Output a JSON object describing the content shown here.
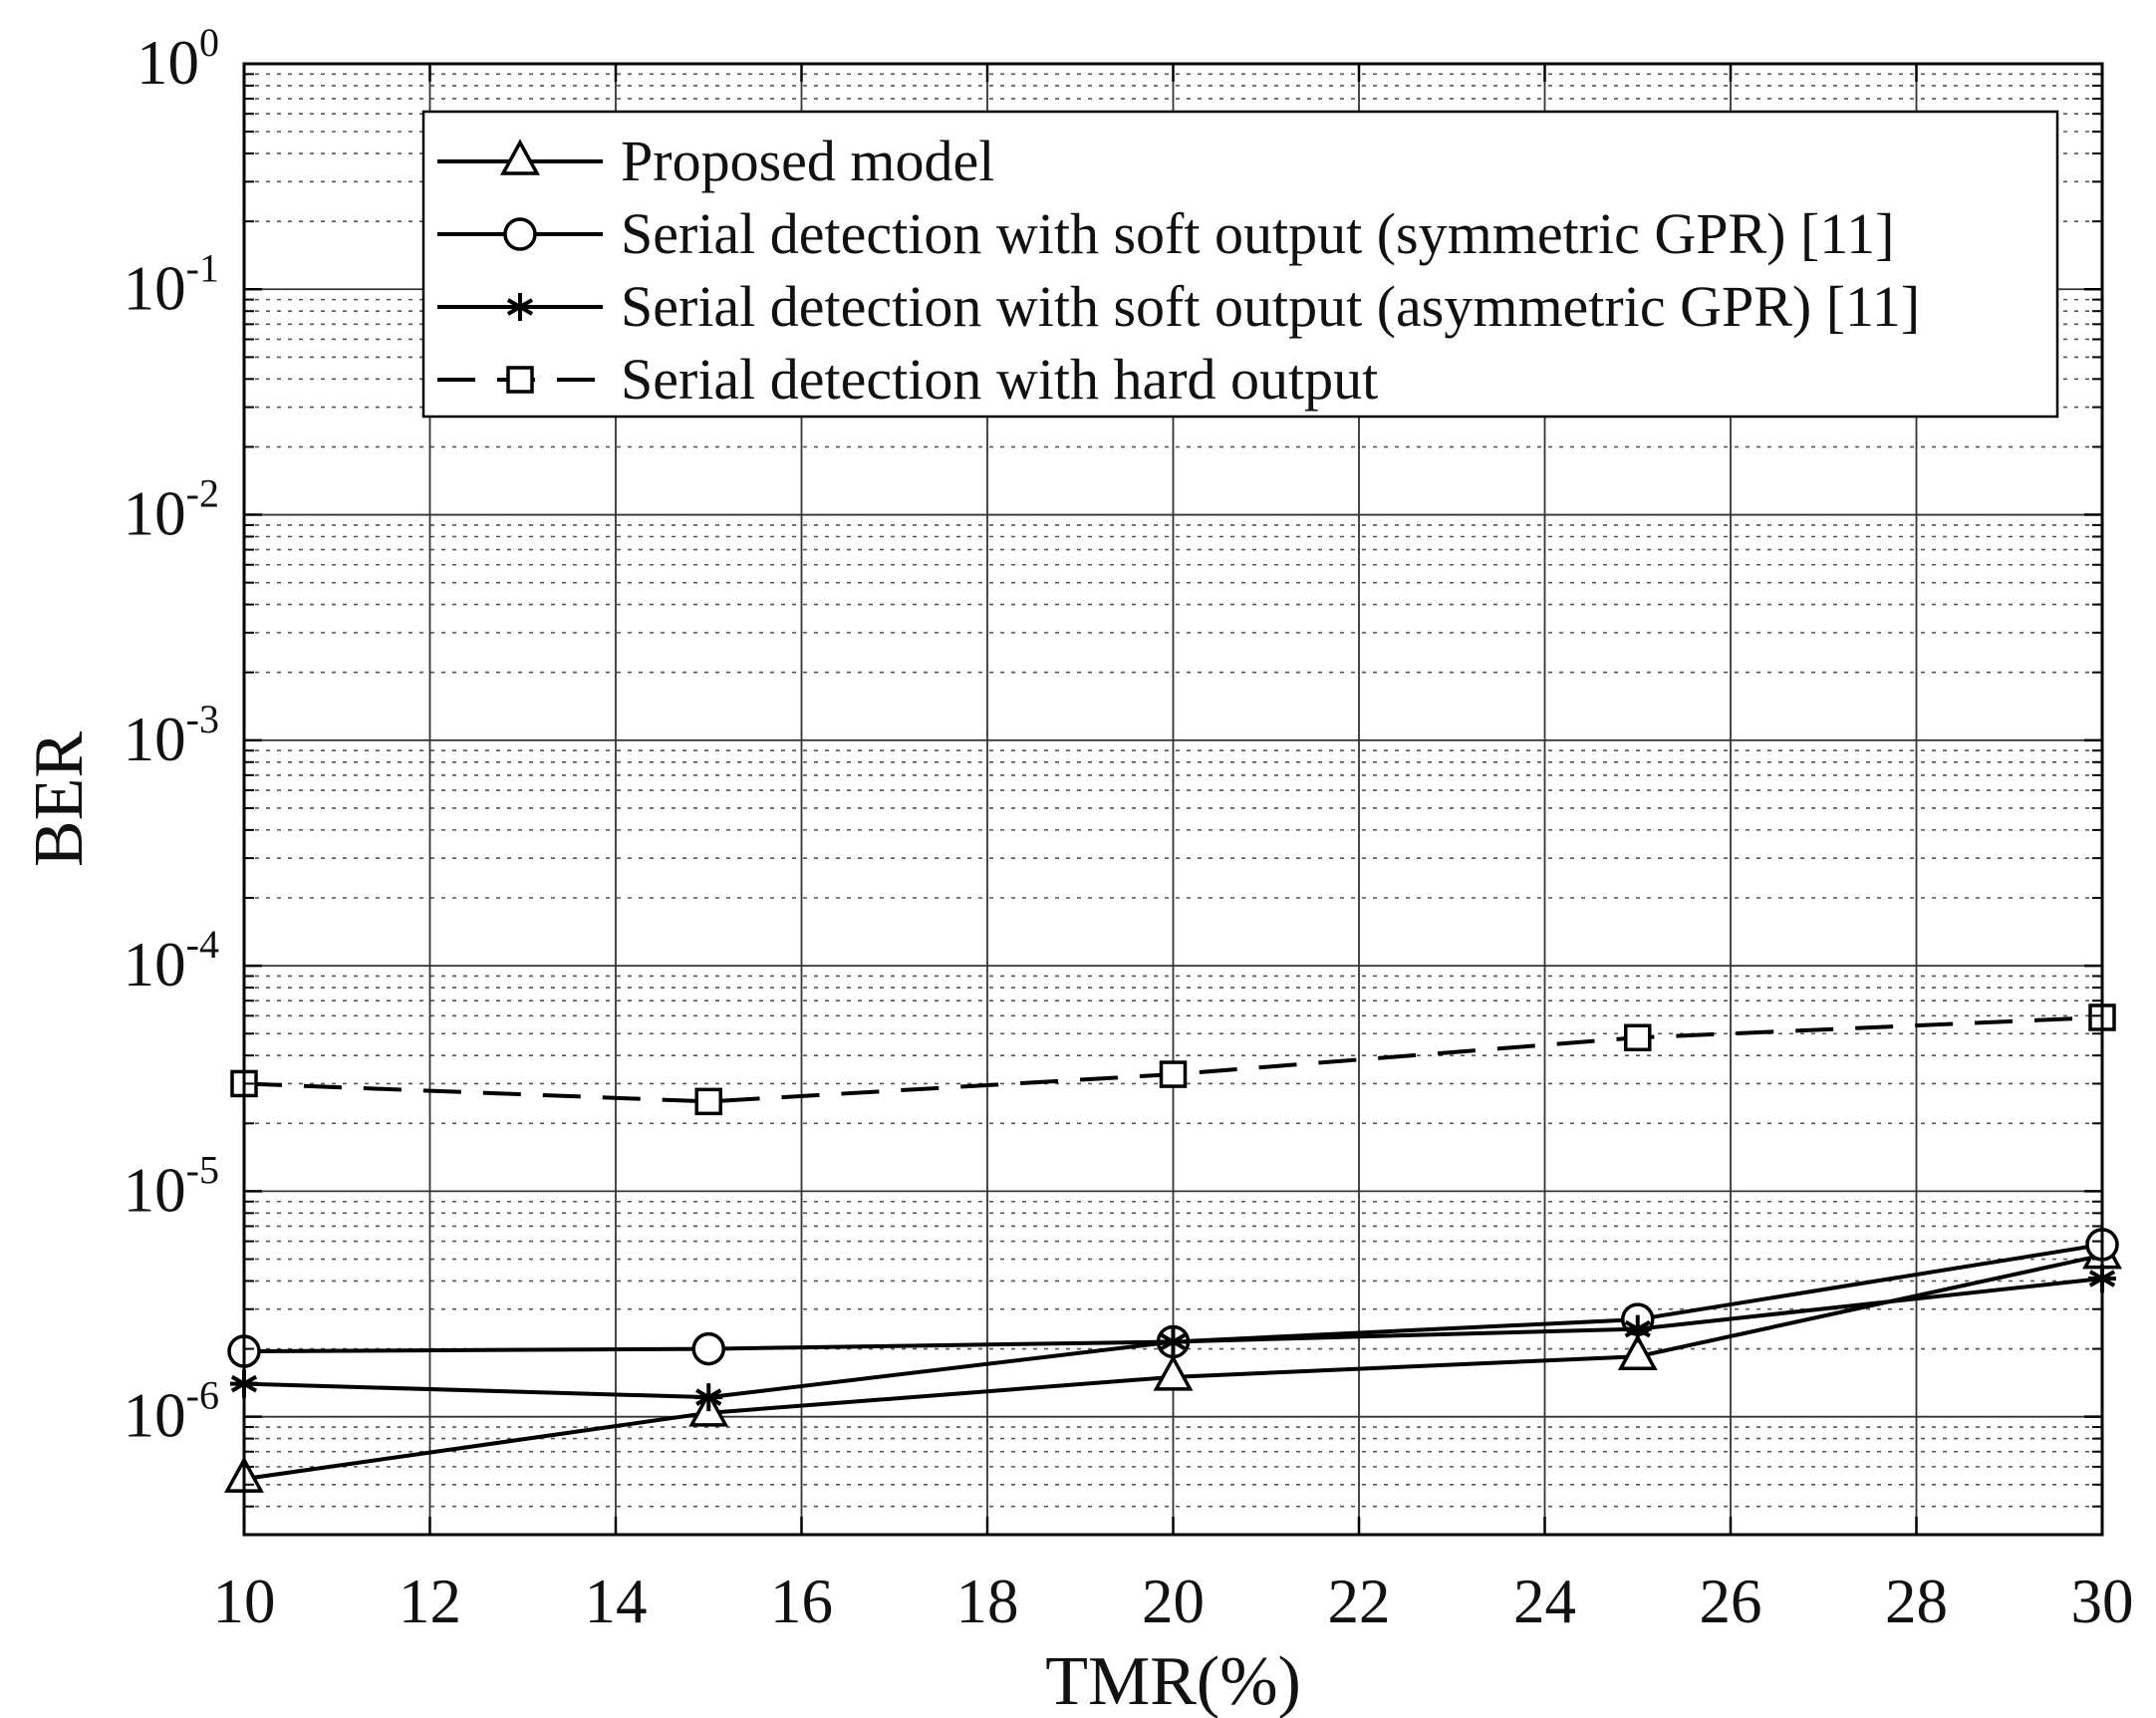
{
  "chart_data": {
    "type": "line",
    "title": "",
    "xlabel": "TMR(%)",
    "ylabel": "BER",
    "x_scale": "linear",
    "y_scale": "log",
    "xlim": [
      10,
      30
    ],
    "ylim": [
      3e-07,
      1
    ],
    "grid": true,
    "minor_grid": true,
    "legend_position": "top",
    "x_ticks": [
      "10",
      "12",
      "14",
      "16",
      "18",
      "20",
      "22",
      "24",
      "26",
      "28",
      "30"
    ],
    "y_ticks": [
      {
        "base": "10",
        "exp": "0"
      },
      {
        "base": "10",
        "exp": "-1"
      },
      {
        "base": "10",
        "exp": "-2"
      },
      {
        "base": "10",
        "exp": "-3"
      },
      {
        "base": "10",
        "exp": "-4"
      },
      {
        "base": "10",
        "exp": "-5"
      },
      {
        "base": "10",
        "exp": "-6"
      }
    ],
    "x": [
      10,
      15,
      20,
      25,
      30
    ],
    "series": [
      {
        "name": "Proposed model",
        "marker": "triangle",
        "line": "solid",
        "color": "#000000",
        "values": [
          5.3e-07,
          1.04e-06,
          1.5e-06,
          1.85e-06,
          5.2e-06
        ]
      },
      {
        "name": "Serial detection with soft output (symmetric GPR) [11]",
        "marker": "circle",
        "line": "solid",
        "color": "#000000",
        "values": [
          1.95e-06,
          2e-06,
          2.15e-06,
          2.7e-06,
          5.8e-06
        ]
      },
      {
        "name": "Serial detection with soft output (asymmetric GPR) [11]",
        "marker": "asterisk",
        "line": "solid",
        "color": "#000000",
        "values": [
          1.4e-06,
          1.22e-06,
          2.15e-06,
          2.45e-06,
          4.1e-06
        ]
      },
      {
        "name": "Serial detection with hard output",
        "marker": "square",
        "line": "dashed",
        "color": "#000000",
        "values": [
          3e-05,
          2.5e-05,
          3.3e-05,
          4.8e-05,
          5.9e-05
        ]
      }
    ]
  }
}
